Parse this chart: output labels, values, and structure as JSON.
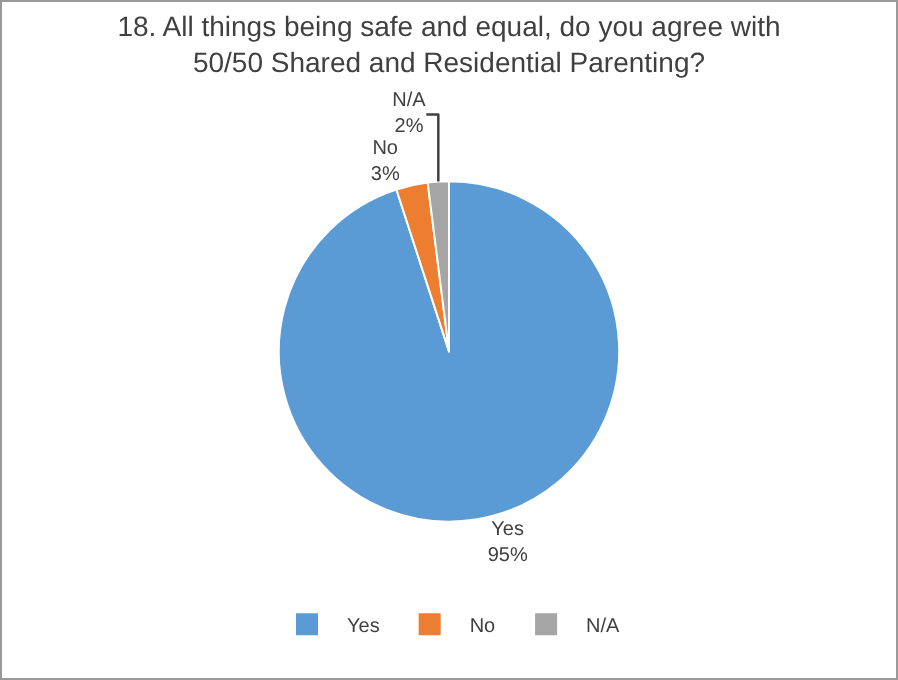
{
  "chart_data": {
    "type": "pie",
    "title": "18. All things being safe and equal, do you agree with 50/50 Shared and Residential Parenting?",
    "categories": [
      "Yes",
      "No",
      "N/A"
    ],
    "values": [
      95,
      3,
      2
    ],
    "colors": [
      "#5b9bd5",
      "#ed7d31",
      "#a5a5a5"
    ],
    "value_labels": [
      "95%",
      "3%",
      "2%"
    ],
    "legend": "bottom"
  }
}
